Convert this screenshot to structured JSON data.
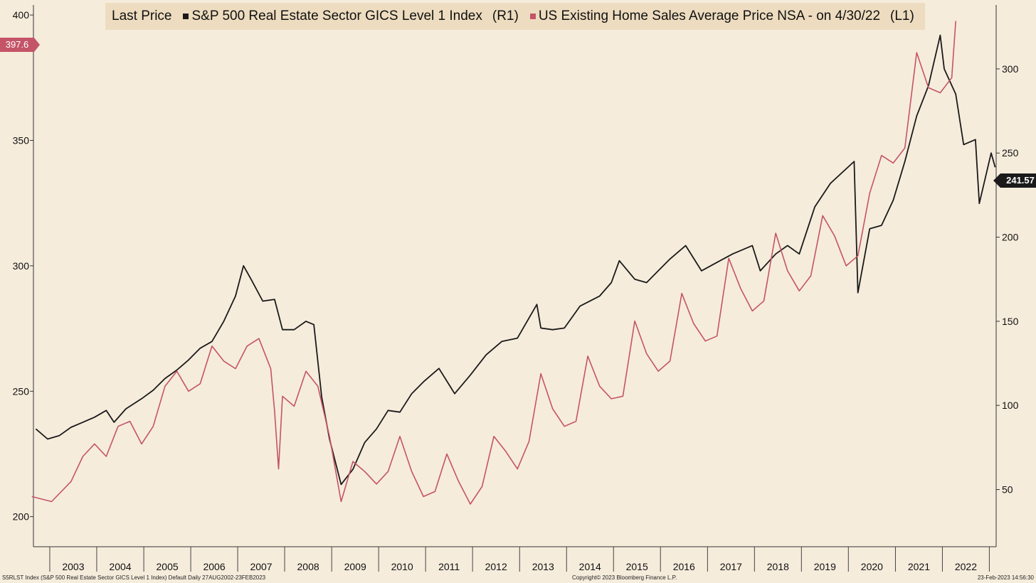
{
  "colors": {
    "background": "#f6ecdc",
    "legend_bg": "#eddcbf",
    "series_black": "#1a1a1a",
    "series_red": "#c45468"
  },
  "legend": {
    "label": "Last Price",
    "items": [
      {
        "name": "S&P 500 Real Estate Sector GICS Level 1 Index",
        "axis": "(R1)",
        "color": "#1a1a1a"
      },
      {
        "name": "US Existing Home Sales Average Price NSA -  on 4/30/22",
        "axis": "(L1)",
        "color": "#c45468"
      }
    ]
  },
  "tags": {
    "left_last": "397.6",
    "right_last": "241.57"
  },
  "footer": {
    "left": "S5RLST Index (S&P 500 Real Estate Sector GICS Level 1 Index) Default  Daily 27AUG2002-23FEB2023",
    "center": "Copyright© 2023 Bloomberg Finance L.P.",
    "right": "23-Feb-2023 14:56:30"
  },
  "chart_data": {
    "type": "line",
    "x_range": [
      "2002-08-27",
      "2023-02-23"
    ],
    "x_tick_labels": [
      "2003",
      "2004",
      "2005",
      "2006",
      "2007",
      "2008",
      "2009",
      "2010",
      "2011",
      "2012",
      "2013",
      "2014",
      "2015",
      "2016",
      "2017",
      "2018",
      "2019",
      "2020",
      "2021",
      "2022"
    ],
    "left_axis": {
      "ticks": [
        200,
        250,
        300,
        350,
        400
      ],
      "range": [
        188,
        404
      ]
    },
    "right_axis": {
      "ticks": [
        50,
        100,
        150,
        200,
        250,
        300
      ],
      "range": [
        16,
        338
      ]
    },
    "series": [
      {
        "name": "S&P 500 Real Estate Sector GICS Level 1 Index",
        "axis": "right",
        "color": "#1a1a1a",
        "points": [
          [
            "2002-09",
            86
          ],
          [
            "2002-12",
            80
          ],
          [
            "2003-03",
            82
          ],
          [
            "2003-06",
            87
          ],
          [
            "2003-09",
            90
          ],
          [
            "2003-12",
            93
          ],
          [
            "2004-03",
            97
          ],
          [
            "2004-05",
            90
          ],
          [
            "2004-08",
            98
          ],
          [
            "2004-12",
            104
          ],
          [
            "2005-03",
            109
          ],
          [
            "2005-06",
            116
          ],
          [
            "2005-09",
            121
          ],
          [
            "2005-12",
            127
          ],
          [
            "2006-03",
            134
          ],
          [
            "2006-06",
            138
          ],
          [
            "2006-09",
            150
          ],
          [
            "2006-12",
            165
          ],
          [
            "2007-02",
            183
          ],
          [
            "2007-04",
            175
          ],
          [
            "2007-07",
            162
          ],
          [
            "2007-10",
            163
          ],
          [
            "2007-12",
            145
          ],
          [
            "2008-03",
            145
          ],
          [
            "2008-06",
            150
          ],
          [
            "2008-08",
            148
          ],
          [
            "2008-10",
            105
          ],
          [
            "2008-12",
            80
          ],
          [
            "2009-03",
            53
          ],
          [
            "2009-06",
            62
          ],
          [
            "2009-09",
            78
          ],
          [
            "2009-12",
            86
          ],
          [
            "2010-03",
            97
          ],
          [
            "2010-06",
            96
          ],
          [
            "2010-09",
            107
          ],
          [
            "2010-12",
            114
          ],
          [
            "2011-04",
            122
          ],
          [
            "2011-08",
            107
          ],
          [
            "2011-12",
            118
          ],
          [
            "2012-04",
            130
          ],
          [
            "2012-08",
            138
          ],
          [
            "2012-12",
            140
          ],
          [
            "2013-05",
            160
          ],
          [
            "2013-06",
            146
          ],
          [
            "2013-09",
            145
          ],
          [
            "2013-12",
            146
          ],
          [
            "2014-04",
            159
          ],
          [
            "2014-09",
            165
          ],
          [
            "2014-12",
            173
          ],
          [
            "2015-02",
            186
          ],
          [
            "2015-06",
            175
          ],
          [
            "2015-09",
            173
          ],
          [
            "2015-12",
            180
          ],
          [
            "2016-03",
            187
          ],
          [
            "2016-07",
            195
          ],
          [
            "2016-11",
            180
          ],
          [
            "2017-03",
            185
          ],
          [
            "2017-07",
            190
          ],
          [
            "2017-12",
            195
          ],
          [
            "2018-02",
            180
          ],
          [
            "2018-06",
            190
          ],
          [
            "2018-09",
            195
          ],
          [
            "2018-12",
            190
          ],
          [
            "2019-04",
            218
          ],
          [
            "2019-08",
            232
          ],
          [
            "2020-02",
            245
          ],
          [
            "2020-03",
            167
          ],
          [
            "2020-06",
            205
          ],
          [
            "2020-09",
            207
          ],
          [
            "2020-12",
            222
          ],
          [
            "2021-03",
            245
          ],
          [
            "2021-06",
            272
          ],
          [
            "2021-09",
            290
          ],
          [
            "2021-12",
            320
          ],
          [
            "2022-01",
            300
          ],
          [
            "2022-04",
            285
          ],
          [
            "2022-06",
            255
          ],
          [
            "2022-09",
            258
          ],
          [
            "2022-10",
            220
          ],
          [
            "2023-01",
            250
          ],
          [
            "2023-02",
            241.57
          ]
        ]
      },
      {
        "name": "US Existing Home Sales Average Price NSA -  on 4/30/22",
        "axis": "left",
        "color": "#c45468",
        "points": [
          [
            "2002-08",
            208
          ],
          [
            "2003-01",
            206
          ],
          [
            "2003-06",
            214
          ],
          [
            "2003-09",
            224
          ],
          [
            "2003-12",
            229
          ],
          [
            "2004-03",
            224
          ],
          [
            "2004-06",
            236
          ],
          [
            "2004-09",
            238
          ],
          [
            "2004-12",
            229
          ],
          [
            "2005-03",
            236
          ],
          [
            "2005-06",
            252
          ],
          [
            "2005-09",
            258
          ],
          [
            "2005-12",
            250
          ],
          [
            "2006-03",
            253
          ],
          [
            "2006-06",
            268
          ],
          [
            "2006-09",
            262
          ],
          [
            "2006-12",
            259
          ],
          [
            "2007-03",
            268
          ],
          [
            "2007-06",
            271
          ],
          [
            "2007-09",
            259
          ],
          [
            "2007-10",
            242
          ],
          [
            "2007-11",
            219
          ],
          [
            "2007-12",
            248
          ],
          [
            "2008-03",
            244
          ],
          [
            "2008-06",
            258
          ],
          [
            "2008-09",
            252
          ],
          [
            "2008-12",
            232
          ],
          [
            "2009-03",
            206
          ],
          [
            "2009-06",
            222
          ],
          [
            "2009-09",
            218
          ],
          [
            "2009-12",
            213
          ],
          [
            "2010-03",
            218
          ],
          [
            "2010-06",
            232
          ],
          [
            "2010-09",
            218
          ],
          [
            "2010-12",
            208
          ],
          [
            "2011-03",
            210
          ],
          [
            "2011-06",
            225
          ],
          [
            "2011-09",
            214
          ],
          [
            "2011-12",
            205
          ],
          [
            "2012-03",
            212
          ],
          [
            "2012-06",
            232
          ],
          [
            "2012-09",
            226
          ],
          [
            "2012-12",
            219
          ],
          [
            "2013-03",
            230
          ],
          [
            "2013-06",
            257
          ],
          [
            "2013-09",
            243
          ],
          [
            "2013-12",
            236
          ],
          [
            "2014-03",
            238
          ],
          [
            "2014-06",
            264
          ],
          [
            "2014-09",
            252
          ],
          [
            "2014-12",
            247
          ],
          [
            "2015-03",
            248
          ],
          [
            "2015-06",
            278
          ],
          [
            "2015-09",
            265
          ],
          [
            "2015-12",
            258
          ],
          [
            "2016-03",
            262
          ],
          [
            "2016-06",
            289
          ],
          [
            "2016-09",
            277
          ],
          [
            "2016-12",
            270
          ],
          [
            "2017-03",
            272
          ],
          [
            "2017-06",
            303
          ],
          [
            "2017-09",
            291
          ],
          [
            "2017-12",
            282
          ],
          [
            "2018-03",
            286
          ],
          [
            "2018-06",
            313
          ],
          [
            "2018-09",
            298
          ],
          [
            "2018-12",
            290
          ],
          [
            "2019-03",
            296
          ],
          [
            "2019-06",
            320
          ],
          [
            "2019-09",
            312
          ],
          [
            "2019-12",
            300
          ],
          [
            "2020-03",
            304
          ],
          [
            "2020-06",
            329
          ],
          [
            "2020-09",
            344
          ],
          [
            "2020-12",
            341
          ],
          [
            "2021-03",
            347
          ],
          [
            "2021-06",
            385
          ],
          [
            "2021-09",
            371
          ],
          [
            "2021-12",
            369
          ],
          [
            "2022-03",
            375
          ],
          [
            "2022-04",
            397.6
          ]
        ]
      }
    ]
  }
}
